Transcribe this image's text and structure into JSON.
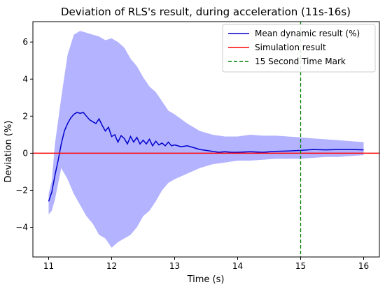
{
  "chart_data": {
    "type": "line",
    "title": "Deviation of RLS's result, during acceleration (11s-16s)",
    "xlabel": "Time (s)",
    "ylabel": "Deviation (%)",
    "xlim": [
      10.75,
      16.25
    ],
    "ylim": [
      -5.6,
      7.1
    ],
    "xticks": [
      11,
      12,
      13,
      14,
      15,
      16
    ],
    "yticks": [
      -4,
      -2,
      0,
      2,
      4,
      6
    ],
    "xtick_labels": [
      "11",
      "12",
      "13",
      "14",
      "15",
      "16"
    ],
    "ytick_labels": [
      "−4",
      "−2",
      "0",
      "2",
      "4",
      "6"
    ],
    "grid": false,
    "legend_position": "top-right",
    "series": [
      {
        "name": "Mean dynamic result (%)",
        "kind": "line",
        "color": "#0000cc",
        "x": [
          11.0,
          11.05,
          11.1,
          11.15,
          11.2,
          11.25,
          11.3,
          11.35,
          11.4,
          11.45,
          11.5,
          11.55,
          11.6,
          11.65,
          11.7,
          11.75,
          11.8,
          11.85,
          11.9,
          11.95,
          12.0,
          12.05,
          12.1,
          12.15,
          12.2,
          12.25,
          12.3,
          12.35,
          12.4,
          12.45,
          12.5,
          12.55,
          12.6,
          12.65,
          12.7,
          12.75,
          12.8,
          12.85,
          12.9,
          12.95,
          13.0,
          13.1,
          13.2,
          13.3,
          13.4,
          13.5,
          13.6,
          13.7,
          13.8,
          13.9,
          14.0,
          14.2,
          14.4,
          14.6,
          14.8,
          15.0,
          15.2,
          15.4,
          15.6,
          15.8,
          16.0
        ],
        "y": [
          -2.6,
          -2.1,
          -1.2,
          -0.4,
          0.5,
          1.2,
          1.6,
          1.9,
          2.1,
          2.2,
          2.15,
          2.2,
          2.0,
          1.8,
          1.7,
          1.6,
          1.85,
          1.5,
          1.2,
          1.4,
          0.9,
          1.0,
          0.6,
          0.95,
          0.8,
          0.5,
          0.9,
          0.6,
          0.85,
          0.5,
          0.7,
          0.5,
          0.75,
          0.4,
          0.65,
          0.45,
          0.55,
          0.4,
          0.6,
          0.4,
          0.45,
          0.35,
          0.4,
          0.3,
          0.2,
          0.15,
          0.1,
          0.05,
          0.08,
          0.05,
          0.05,
          0.08,
          0.05,
          0.1,
          0.12,
          0.15,
          0.2,
          0.18,
          0.2,
          0.2,
          0.18
        ]
      },
      {
        "name": "Simulation result",
        "kind": "hline",
        "color": "#ff0000",
        "y": 0
      },
      {
        "name": "15 Second Time Mark",
        "kind": "vline",
        "color": "#008000",
        "dashed": true,
        "x": 15
      }
    ],
    "band": {
      "color": "#b3b3ff",
      "x": [
        11.0,
        11.05,
        11.1,
        11.2,
        11.3,
        11.4,
        11.5,
        11.6,
        11.7,
        11.8,
        11.9,
        12.0,
        12.1,
        12.2,
        12.3,
        12.4,
        12.5,
        12.6,
        12.7,
        12.8,
        12.9,
        13.0,
        13.2,
        13.4,
        13.6,
        13.8,
        14.0,
        14.2,
        14.4,
        14.6,
        14.8,
        15.0,
        15.2,
        15.4,
        15.6,
        15.8,
        16.0
      ],
      "upper": [
        -2.2,
        -1.5,
        0.5,
        3.0,
        5.3,
        6.4,
        6.6,
        6.5,
        6.4,
        6.3,
        6.1,
        6.2,
        6.0,
        5.7,
        5.1,
        4.7,
        4.1,
        3.6,
        3.3,
        2.8,
        2.3,
        2.1,
        1.6,
        1.2,
        1.0,
        0.9,
        0.9,
        1.0,
        0.95,
        0.95,
        0.9,
        0.85,
        0.8,
        0.75,
        0.7,
        0.65,
        0.6
      ],
      "lower": [
        -3.3,
        -3.1,
        -2.5,
        -0.8,
        -1.4,
        -2.2,
        -2.8,
        -3.4,
        -3.8,
        -4.4,
        -4.6,
        -5.1,
        -4.8,
        -4.6,
        -4.4,
        -4.0,
        -3.4,
        -3.1,
        -2.6,
        -2.0,
        -1.6,
        -1.4,
        -1.1,
        -0.8,
        -0.6,
        -0.5,
        -0.4,
        -0.4,
        -0.35,
        -0.3,
        -0.3,
        -0.3,
        -0.25,
        -0.2,
        -0.2,
        -0.15,
        -0.1
      ]
    }
  }
}
